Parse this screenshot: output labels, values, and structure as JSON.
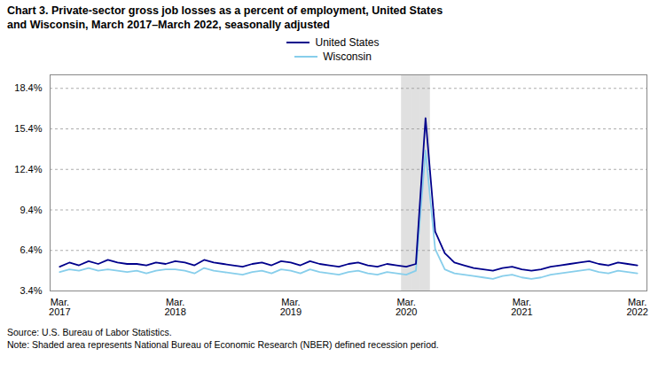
{
  "chart_data": {
    "type": "line",
    "title": "Chart 3. Private-sector gross job losses as a percent of employment, United States\nand Wisconsin,  March 2017–March 2022, seasonally adjusted",
    "source": "Source: U.S. Bureau of Labor Statistics.",
    "note": "Note: Shaded area represents National Bureau of Economic Research (NBER) defined  recession period.",
    "categories": [
      "Mar.\n2017",
      null,
      null,
      null,
      null,
      null,
      null,
      null,
      null,
      null,
      null,
      null,
      "Mar.\n2018",
      null,
      null,
      null,
      null,
      null,
      null,
      null,
      null,
      null,
      null,
      null,
      "Mar.\n2019",
      null,
      null,
      null,
      null,
      null,
      null,
      null,
      null,
      null,
      null,
      null,
      "Mar.\n2020",
      null,
      null,
      null,
      null,
      null,
      null,
      null,
      null,
      null,
      null,
      null,
      "Mar.\n2021",
      null,
      null,
      null,
      null,
      null,
      null,
      null,
      null,
      null,
      null,
      null,
      "Mar.\n2022"
    ],
    "series": [
      {
        "name": "United States",
        "color": "#00008B",
        "values": [
          5.2,
          5.5,
          5.3,
          5.6,
          5.4,
          5.7,
          5.5,
          5.4,
          5.4,
          5.3,
          5.5,
          5.4,
          5.6,
          5.5,
          5.3,
          5.7,
          5.5,
          5.4,
          5.3,
          5.2,
          5.4,
          5.5,
          5.3,
          5.6,
          5.5,
          5.3,
          5.6,
          5.4,
          5.3,
          5.2,
          5.4,
          5.5,
          5.3,
          5.2,
          5.4,
          5.3,
          5.2,
          5.4,
          16.2,
          7.8,
          6.2,
          5.5,
          5.3,
          5.1,
          5.0,
          4.9,
          5.1,
          5.2,
          5.0,
          4.9,
          5.0,
          5.2,
          5.3,
          5.4,
          5.5,
          5.6,
          5.4,
          5.3,
          5.5,
          5.4,
          5.3
        ]
      },
      {
        "name": "Wisconsin",
        "color": "#87CEEB",
        "values": [
          4.8,
          5.0,
          4.9,
          5.1,
          4.9,
          5.0,
          4.9,
          4.8,
          4.9,
          4.7,
          4.9,
          5.0,
          5.0,
          4.9,
          4.7,
          5.1,
          4.9,
          4.8,
          4.7,
          4.6,
          4.8,
          4.9,
          4.7,
          5.0,
          4.9,
          4.7,
          5.0,
          4.8,
          4.7,
          4.6,
          4.8,
          4.9,
          4.7,
          4.6,
          4.8,
          4.7,
          4.6,
          4.9,
          13.8,
          6.5,
          5.0,
          4.7,
          4.6,
          4.5,
          4.4,
          4.3,
          4.5,
          4.6,
          4.4,
          4.3,
          4.4,
          4.6,
          4.7,
          4.8,
          4.9,
          5.0,
          4.8,
          4.7,
          4.9,
          4.8,
          4.7
        ]
      }
    ],
    "shaded_period": {
      "start": 36,
      "end": 38,
      "color": "#CCCCCC"
    },
    "ylim": [
      3.4,
      19.4
    ],
    "yticks": [
      {
        "value": 3.4,
        "label": "3.4%"
      },
      {
        "value": 6.4,
        "label": "6.4%"
      },
      {
        "value": 9.4,
        "label": "9.4%"
      },
      {
        "value": 12.4,
        "label": "12.4%"
      },
      {
        "value": 15.4,
        "label": "15.4%"
      },
      {
        "value": 18.4,
        "label": "18.4%"
      }
    ],
    "grid": true,
    "legend": "upper center"
  }
}
